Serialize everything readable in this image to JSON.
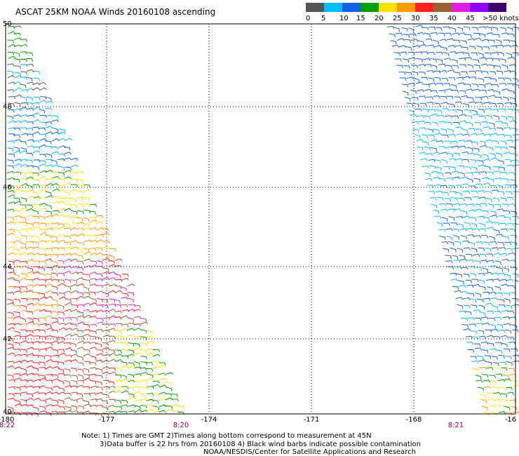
{
  "title": "ASCAT 25KM NOAA Winds 20160108 ascending",
  "legend": {
    "colors": [
      "#555555",
      "#00bbff",
      "#1060e8",
      "#00a000",
      "#ffe000",
      "#ff9900",
      "#ff2020",
      "#9b6030",
      "#e020e0",
      "#9000ff",
      "#400070"
    ],
    "labels": [
      "0",
      "5",
      "10",
      "15",
      "20",
      "25",
      "30",
      "35",
      "40",
      "45",
      ">50 knots"
    ]
  },
  "map": {
    "lat_labels": [
      "50",
      "48",
      "46",
      "44",
      "42",
      "40"
    ],
    "lon_labels": [
      "-180",
      "-177",
      "-174",
      "-171",
      "-168",
      "-16"
    ],
    "lat_range": [
      40,
      50
    ],
    "lon_range": [
      -180,
      -165
    ],
    "grid": true,
    "time_labels": [
      "8:22",
      "8:20",
      "8:21"
    ],
    "swaths": [
      {
        "name": "west",
        "wind_band_by_latitude": "5-15 knots near 50N, 30-45 knots near 40-43N"
      },
      {
        "name": "east",
        "wind_band_by_latitude": "5-15 knots, 15-25 knots near 40N"
      }
    ]
  },
  "notes": {
    "line1": "Note: 1) Times are GMT 2)Times along bottom correspond to measurement at 45N",
    "line2": "3)Data buffer is 22 hrs from 20160108 4) Black wind barbs indicate possible contamination",
    "line3": "NOAA/NESDIS/Center for Satellite Applications and Research"
  }
}
